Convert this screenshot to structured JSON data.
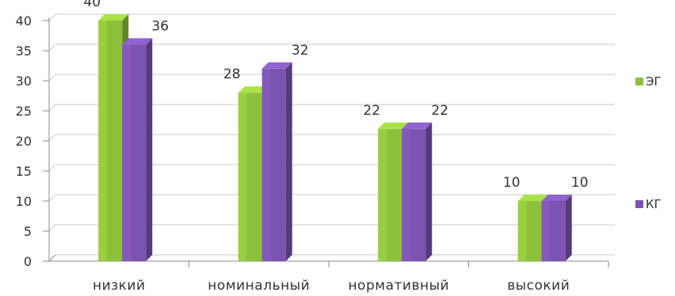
{
  "chart_data": {
    "type": "bar",
    "categories": [
      "низкий",
      "номинальный",
      "нормативный",
      "высокий"
    ],
    "series": [
      {
        "name": "ЭГ",
        "values": [
          40,
          28,
          22,
          10
        ],
        "labels": [
          "40",
          "28",
          "22",
          "10"
        ],
        "color": "#8fc03c"
      },
      {
        "name": "КГ",
        "values": [
          36,
          32,
          22,
          10
        ],
        "labels": [
          "36",
          "32",
          "22",
          "10"
        ],
        "color": "#7b53b0"
      }
    ],
    "ylim": [
      0,
      40
    ],
    "yticks": [
      0,
      5,
      10,
      15,
      20,
      25,
      30,
      35,
      40
    ],
    "grid": true,
    "legend_position": "right",
    "style": "3d-clustered-column"
  }
}
